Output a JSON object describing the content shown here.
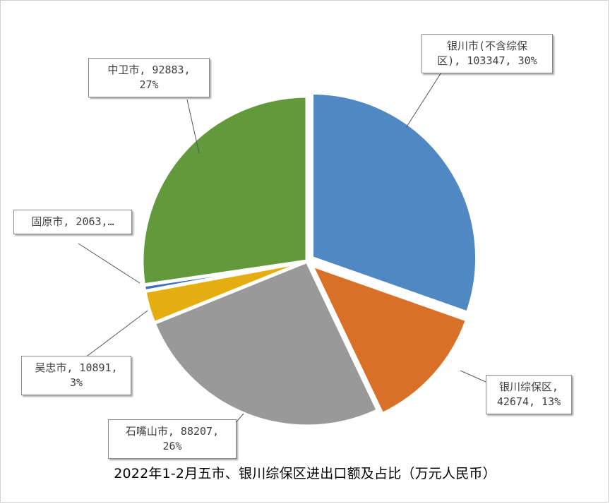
{
  "chart_data": {
    "type": "pie",
    "title": "2022年1-2月五市、银川综保区进出口额及占比（万元人民币）",
    "slices": [
      {
        "name": "银川市(不含综保区)",
        "value": 103347,
        "percent": "30%",
        "color": "#4f88c2",
        "label": "银川市(不含综保\n区), 103347, 30%"
      },
      {
        "name": "银川综保区",
        "value": 42674,
        "percent": "13%",
        "color": "#d97028",
        "label": "银川综保区,\n42674, 13%"
      },
      {
        "name": "石嘴山市",
        "value": 88207,
        "percent": "26%",
        "color": "#999999",
        "label": "石嘴山市, 88207,\n26%"
      },
      {
        "name": "吴忠市",
        "value": 10891,
        "percent": "3%",
        "color": "#e5ad0f",
        "label": "吴忠市, 10891,\n3%"
      },
      {
        "name": "固原市",
        "value": 2063,
        "percent": "1%",
        "color": "#3f6ec2",
        "label": "固原市, 2063,…"
      },
      {
        "name": "中卫市",
        "value": 92883,
        "percent": "27%",
        "color": "#62993b",
        "label": "中卫市, 92883,\n27%"
      }
    ]
  }
}
